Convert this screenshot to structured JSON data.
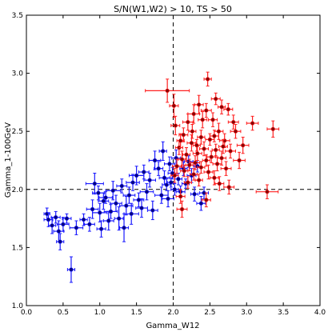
{
  "chart_data": {
    "type": "scatter",
    "title": "S/N(W1,W2) > 10, TS > 50",
    "xlabel": "Gamma_W12",
    "ylabel": "Gamma_1-100GeV",
    "xlim": [
      0.0,
      4.0
    ],
    "ylim": [
      1.0,
      3.5
    ],
    "x_ticks": [
      "0.0",
      "0.5",
      "1.0",
      "1.5",
      "2.0",
      "2.5",
      "3.0",
      "3.5",
      "4.0"
    ],
    "y_ticks": [
      "1.0",
      "1.5",
      "2.0",
      "2.5",
      "3.0",
      "3.5"
    ],
    "grid": false,
    "reference_lines": {
      "x": 2.0,
      "y": 2.0,
      "style": "dashed",
      "color": "#000000"
    },
    "series": [
      {
        "color": "#1a1aff",
        "marker_color": "#000080",
        "points": [
          [
            0.28,
            1.79,
            0.04,
            0.05
          ],
          [
            0.3,
            1.74,
            0.06,
            0.06
          ],
          [
            0.35,
            1.69,
            0.05,
            0.07
          ],
          [
            0.4,
            1.76,
            0.06,
            0.05
          ],
          [
            0.44,
            1.64,
            0.07,
            0.09
          ],
          [
            0.46,
            1.55,
            0.05,
            0.07
          ],
          [
            0.5,
            1.7,
            0.08,
            0.06
          ],
          [
            0.55,
            1.75,
            0.06,
            0.04
          ],
          [
            0.61,
            1.31,
            0.05,
            0.11
          ],
          [
            0.68,
            1.67,
            0.09,
            0.06
          ],
          [
            0.78,
            1.74,
            0.05,
            0.05
          ],
          [
            0.86,
            1.7,
            0.07,
            0.06
          ],
          [
            0.9,
            1.83,
            0.08,
            0.08
          ],
          [
            0.93,
            2.05,
            0.12,
            0.09
          ],
          [
            0.98,
            1.97,
            0.08,
            0.06
          ],
          [
            1.0,
            1.8,
            0.1,
            0.08
          ],
          [
            1.02,
            1.66,
            0.06,
            0.07
          ],
          [
            1.05,
            1.9,
            0.07,
            0.07
          ],
          [
            1.08,
            1.93,
            0.09,
            0.05
          ],
          [
            1.12,
            1.73,
            0.07,
            0.08
          ],
          [
            1.15,
            1.81,
            0.09,
            0.06
          ],
          [
            1.18,
            1.99,
            0.1,
            0.08
          ],
          [
            1.22,
            1.88,
            0.08,
            0.07
          ],
          [
            1.26,
            1.75,
            0.06,
            0.1
          ],
          [
            1.3,
            2.03,
            0.07,
            0.06
          ],
          [
            1.33,
            1.67,
            0.06,
            0.12
          ],
          [
            1.36,
            1.86,
            0.09,
            0.08
          ],
          [
            1.4,
            1.95,
            0.08,
            0.07
          ],
          [
            1.43,
            1.79,
            0.1,
            0.09
          ],
          [
            1.45,
            2.06,
            0.09,
            0.07
          ],
          [
            1.5,
            2.12,
            0.1,
            0.08
          ],
          [
            1.53,
            1.91,
            0.07,
            0.06
          ],
          [
            1.57,
            1.84,
            0.08,
            0.08
          ],
          [
            1.6,
            2.15,
            0.07,
            0.06
          ],
          [
            1.64,
            1.98,
            0.09,
            0.07
          ],
          [
            1.68,
            2.08,
            0.08,
            0.06
          ],
          [
            1.72,
            1.82,
            0.07,
            0.08
          ],
          [
            1.75,
            2.25,
            0.08,
            0.08
          ],
          [
            1.8,
            2.18,
            0.06,
            0.06
          ],
          [
            1.84,
            1.95,
            0.09,
            0.07
          ],
          [
            1.86,
            2.33,
            0.05,
            0.08
          ],
          [
            1.88,
            2.1,
            0.07,
            0.06
          ],
          [
            1.91,
            2.04,
            0.06,
            0.05
          ],
          [
            1.93,
            1.92,
            0.08,
            0.07
          ],
          [
            1.95,
            2.22,
            0.07,
            0.06
          ],
          [
            1.97,
            2.06,
            0.05,
            0.04
          ],
          [
            1.99,
            2.14,
            0.06,
            0.05
          ],
          [
            2.02,
            2.0,
            0.05,
            0.05
          ],
          [
            2.04,
            2.27,
            0.06,
            0.07
          ],
          [
            2.07,
            2.09,
            0.05,
            0.05
          ],
          [
            2.1,
            1.98,
            0.06,
            0.05
          ],
          [
            2.14,
            2.18,
            0.05,
            0.06
          ],
          [
            2.17,
            2.05,
            0.05,
            0.04
          ],
          [
            2.21,
            2.24,
            0.06,
            0.05
          ],
          [
            2.25,
            2.12,
            0.06,
            0.06
          ],
          [
            2.29,
            1.96,
            0.05,
            0.06
          ],
          [
            2.33,
            2.2,
            0.05,
            0.05
          ],
          [
            2.38,
            1.88,
            0.06,
            0.06
          ],
          [
            2.42,
            1.97,
            0.06,
            0.05
          ]
        ]
      },
      {
        "color": "#ff2020",
        "marker_color": "#8b0000",
        "points": [
          [
            1.92,
            2.85,
            0.3,
            0.1
          ],
          [
            2.47,
            2.95,
            0.05,
            0.06
          ],
          [
            2.01,
            2.72,
            0.06,
            0.1
          ],
          [
            2.28,
            2.65,
            0.08,
            0.08
          ],
          [
            2.35,
            2.73,
            0.06,
            0.08
          ],
          [
            2.45,
            2.68,
            0.07,
            0.06
          ],
          [
            2.58,
            2.78,
            0.06,
            0.05
          ],
          [
            2.66,
            2.71,
            0.05,
            0.06
          ],
          [
            2.75,
            2.69,
            0.06,
            0.05
          ],
          [
            2.54,
            2.6,
            0.06,
            0.06
          ],
          [
            2.2,
            2.58,
            0.07,
            0.07
          ],
          [
            3.08,
            2.57,
            0.08,
            0.06
          ],
          [
            3.36,
            2.52,
            0.08,
            0.07
          ],
          [
            2.85,
            2.5,
            0.07,
            0.06
          ],
          [
            2.62,
            2.5,
            0.06,
            0.07
          ],
          [
            2.14,
            2.47,
            0.06,
            0.06
          ],
          [
            2.38,
            2.45,
            0.05,
            0.06
          ],
          [
            2.5,
            2.43,
            0.06,
            0.05
          ],
          [
            2.7,
            2.42,
            0.07,
            0.06
          ],
          [
            2.95,
            2.38,
            0.08,
            0.07
          ],
          [
            2.25,
            2.4,
            0.06,
            0.07
          ],
          [
            2.08,
            2.36,
            0.05,
            0.06
          ],
          [
            2.42,
            2.35,
            0.06,
            0.06
          ],
          [
            2.58,
            2.34,
            0.05,
            0.05
          ],
          [
            2.78,
            2.33,
            0.07,
            0.06
          ],
          [
            2.33,
            2.31,
            0.06,
            0.06
          ],
          [
            2.18,
            2.3,
            0.05,
            0.06
          ],
          [
            2.52,
            2.28,
            0.06,
            0.05
          ],
          [
            2.66,
            2.27,
            0.06,
            0.06
          ],
          [
            2.12,
            2.26,
            0.05,
            0.07
          ],
          [
            2.45,
            2.25,
            0.05,
            0.05
          ],
          [
            2.3,
            2.23,
            0.06,
            0.06
          ],
          [
            2.6,
            2.22,
            0.06,
            0.06
          ],
          [
            2.22,
            2.21,
            0.05,
            0.05
          ],
          [
            2.05,
            2.2,
            0.06,
            0.06
          ],
          [
            2.38,
            2.19,
            0.05,
            0.05
          ],
          [
            2.72,
            2.18,
            0.07,
            0.06
          ],
          [
            2.15,
            2.16,
            0.05,
            0.05
          ],
          [
            2.48,
            2.15,
            0.06,
            0.06
          ],
          [
            2.28,
            2.13,
            0.05,
            0.05
          ],
          [
            2.02,
            2.12,
            0.05,
            0.06
          ],
          [
            2.56,
            2.1,
            0.06,
            0.06
          ],
          [
            2.35,
            2.08,
            0.05,
            0.05
          ],
          [
            2.2,
            2.06,
            0.05,
            0.05
          ],
          [
            2.63,
            2.05,
            0.06,
            0.06
          ],
          [
            2.76,
            2.02,
            0.07,
            0.06
          ],
          [
            2.1,
            1.94,
            0.06,
            0.06
          ],
          [
            2.45,
            1.91,
            0.06,
            0.06
          ],
          [
            2.12,
            1.83,
            0.07,
            0.07
          ],
          [
            3.28,
            1.98,
            0.15,
            0.06
          ],
          [
            2.9,
            2.25,
            0.08,
            0.07
          ],
          [
            2.03,
            2.55,
            0.06,
            0.08
          ],
          [
            2.82,
            2.58,
            0.07,
            0.06
          ],
          [
            2.4,
            2.6,
            0.06,
            0.07
          ],
          [
            2.26,
            2.5,
            0.05,
            0.06
          ],
          [
            2.56,
            2.46,
            0.06,
            0.05
          ],
          [
            2.1,
            2.42,
            0.05,
            0.06
          ],
          [
            2.68,
            2.37,
            0.06,
            0.06
          ],
          [
            2.32,
            2.38,
            0.05,
            0.05
          ]
        ]
      }
    ]
  }
}
